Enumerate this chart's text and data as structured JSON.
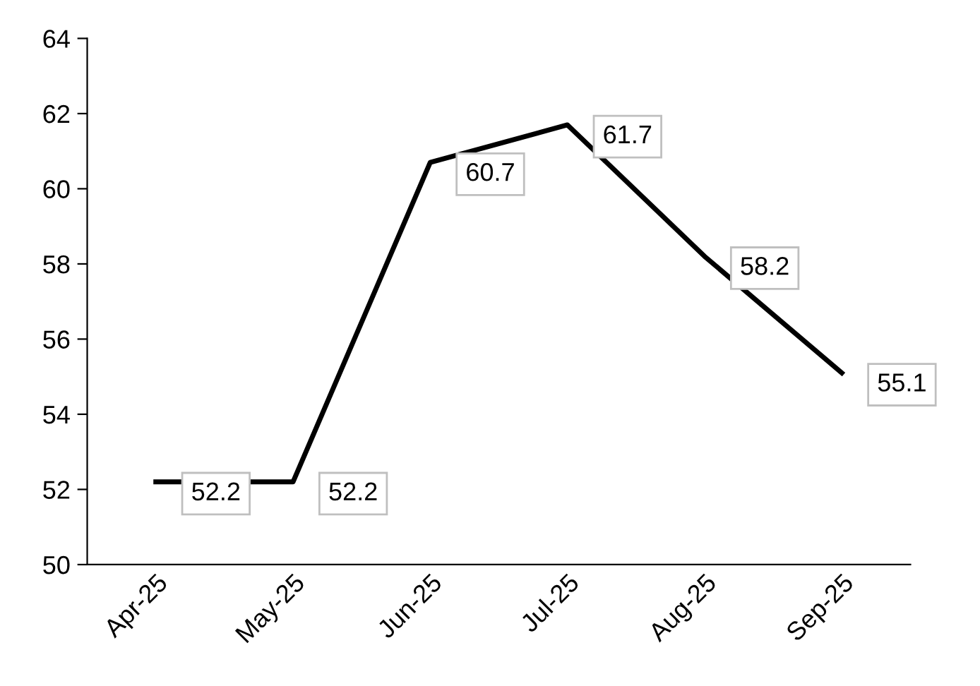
{
  "chart_data": {
    "type": "line",
    "categories": [
      "Apr-25",
      "May-25",
      "Jun-25",
      "Jul-25",
      "Aug-25",
      "Sep-25"
    ],
    "series": [
      {
        "color": "#000000",
        "values": [
          52.2,
          52.2,
          60.7,
          61.7,
          58.2,
          55.1
        ]
      }
    ],
    "ylim": [
      50,
      64
    ],
    "yticks": [
      50,
      52,
      54,
      56,
      58,
      60,
      62,
      64
    ],
    "data_labels": true,
    "grid": false,
    "legend": false,
    "marker": "none",
    "line_style": "solid"
  }
}
